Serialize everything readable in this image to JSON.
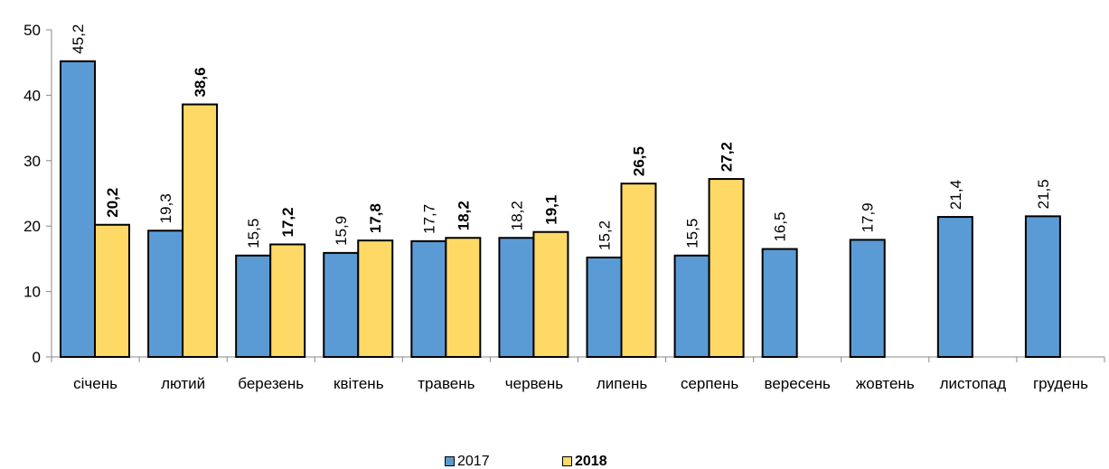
{
  "chart_data": {
    "type": "bar",
    "categories": [
      "січень",
      "лютий",
      "березень",
      "квітень",
      "травень",
      "червень",
      "липень",
      "серпень",
      "вересень",
      "жовтень",
      "листопад",
      "грудень"
    ],
    "series": [
      {
        "name": "2017",
        "color": "#5b9bd5",
        "values": [
          45.2,
          19.3,
          15.5,
          15.9,
          17.7,
          18.2,
          15.2,
          15.5,
          16.5,
          17.9,
          21.4,
          21.5
        ],
        "labels": [
          "45,2",
          "19,3",
          "15,5",
          "15,9",
          "17,7",
          "18,2",
          "15,2",
          "15,5",
          "16,5",
          "17,9",
          "21,4",
          "21,5"
        ]
      },
      {
        "name": "2018",
        "color": "#ffd966",
        "values": [
          20.2,
          38.6,
          17.2,
          17.8,
          18.2,
          19.1,
          26.5,
          27.2,
          null,
          null,
          null,
          null
        ],
        "labels": [
          "20,2",
          "38,6",
          "17,2",
          "17,8",
          "18,2",
          "19,1",
          "26,5",
          "27,2",
          null,
          null,
          null,
          null
        ]
      }
    ],
    "ylim": [
      0,
      50
    ],
    "yticks": [
      "0",
      "10",
      "20",
      "30",
      "40",
      "50"
    ],
    "grid": false,
    "legend_position": "bottom"
  }
}
